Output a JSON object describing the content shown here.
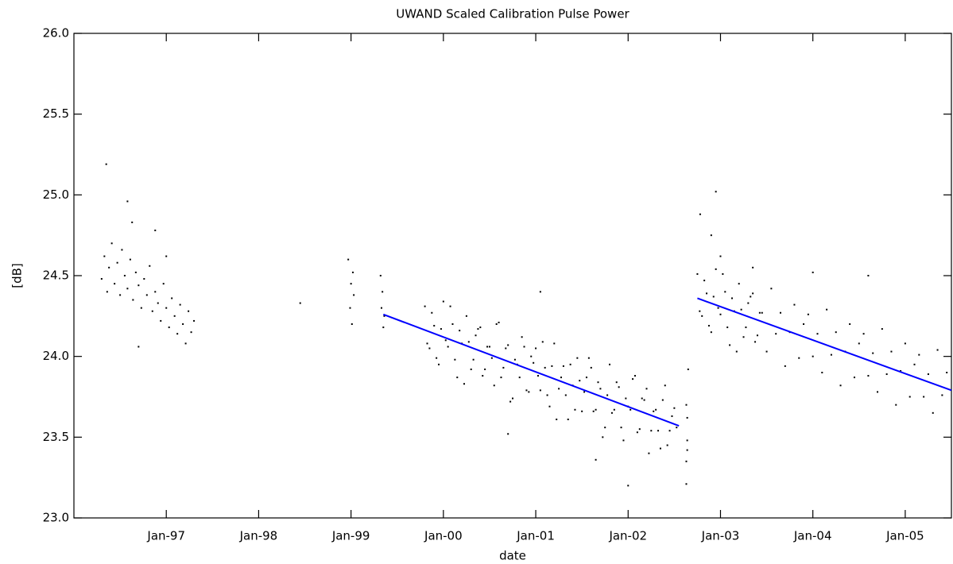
{
  "chart_data": {
    "type": "scatter",
    "title": "UWAND Scaled Calibration Pulse Power",
    "xlabel": "date",
    "ylabel": "[dB]",
    "xlim": [
      1996.0,
      2005.5
    ],
    "ylim": [
      23.0,
      26.0
    ],
    "xticks": [
      {
        "value": 1997,
        "label": "Jan-97"
      },
      {
        "value": 1998,
        "label": "Jan-98"
      },
      {
        "value": 1999,
        "label": "Jan-99"
      },
      {
        "value": 2000,
        "label": "Jan-00"
      },
      {
        "value": 2001,
        "label": "Jan-01"
      },
      {
        "value": 2002,
        "label": "Jan-02"
      },
      {
        "value": 2003,
        "label": "Jan-03"
      },
      {
        "value": 2004,
        "label": "Jan-04"
      },
      {
        "value": 2005,
        "label": "Jan-05"
      }
    ],
    "yticks": [
      {
        "value": 23,
        "label": "23.0"
      },
      23.5,
      {
        "value": 24,
        "label": "24.0"
      },
      24.5,
      {
        "value": 25,
        "label": "25.0"
      },
      25.5,
      {
        "value": 26,
        "label": "26.0"
      }
    ],
    "grid": false,
    "series": [
      {
        "type": "scatter",
        "color": "#000000",
        "x": [
          1996.3,
          1996.33,
          1996.36,
          1996.38,
          1996.41,
          1996.44,
          1996.47,
          1996.5,
          1996.52,
          1996.55,
          1996.58,
          1996.61,
          1996.64,
          1996.67,
          1996.7,
          1996.73,
          1996.76,
          1996.79,
          1996.82,
          1996.85,
          1996.88,
          1996.91,
          1996.94,
          1996.97,
          1997.0,
          1997.03,
          1997.06,
          1997.09,
          1997.12,
          1997.15,
          1997.18,
          1997.21,
          1997.24,
          1997.27,
          1997.3,
          1996.7,
          1997.0,
          1996.35,
          1996.58,
          1996.63,
          1996.88,
          1998.45,
          1998.97,
          1999.0,
          1998.99,
          1999.02,
          1999.01,
          1999.03,
          1999.32,
          1999.33,
          1999.35,
          1999.34,
          1999.36,
          1999.8,
          1999.85,
          1999.9,
          1999.95,
          2000.0,
          2000.05,
          2000.1,
          2000.15,
          2000.2,
          2000.25,
          2000.3,
          2000.35,
          2000.4,
          2000.45,
          2000.5,
          2000.55,
          2000.6,
          2000.65,
          2000.7,
          2000.75,
          2000.8,
          2000.85,
          2000.9,
          2000.95,
          2001.0,
          2001.05,
          2001.1,
          2001.15,
          2001.2,
          2001.25,
          2001.3,
          2001.35,
          2001.4,
          2001.45,
          2001.5,
          2001.55,
          2001.6,
          2001.65,
          2001.7,
          2001.75,
          2001.8,
          2001.85,
          2001.9,
          2001.95,
          2002.0,
          2002.05,
          2002.1,
          2002.15,
          2002.2,
          2002.25,
          2002.3,
          2002.35,
          2002.4,
          2002.45,
          2002.5,
          1999.825,
          1999.875,
          1999.925,
          1999.975,
          2000.025,
          2000.075,
          2000.125,
          2000.175,
          2000.225,
          2000.275,
          2000.325,
          2000.375,
          2000.425,
          2000.475,
          2000.525,
          2000.575,
          2000.625,
          2000.675,
          2000.725,
          2000.775,
          2000.825,
          2000.875,
          2000.925,
          2000.975,
          2001.025,
          2001.075,
          2001.125,
          2001.175,
          2001.225,
          2001.275,
          2001.325,
          2001.375,
          2001.425,
          2001.475,
          2001.525,
          2001.575,
          2001.625,
          2001.675,
          2001.725,
          2001.775,
          2001.825,
          2001.875,
          2001.925,
          2001.975,
          2002.025,
          2002.075,
          2002.125,
          2002.175,
          2002.225,
          2002.275,
          2002.325,
          2002.375,
          2002.425,
          2002.475,
          2002.525,
          2001.05,
          2001.65,
          2002.0,
          2000.7,
          2002.63,
          2002.63,
          2002.64,
          2002.64,
          2002.63,
          2002.64,
          2002.65,
          2002.75,
          2002.8,
          2002.85,
          2002.9,
          2002.95,
          2003.0,
          2003.05,
          2003.1,
          2003.15,
          2003.2,
          2003.25,
          2003.3,
          2003.35,
          2003.4,
          2003.45,
          2003.5,
          2003.55,
          2003.6,
          2003.65,
          2003.7,
          2003.75,
          2003.8,
          2003.85,
          2003.9,
          2003.95,
          2004.0,
          2004.05,
          2004.1,
          2004.15,
          2004.2,
          2004.25,
          2004.3,
          2004.35,
          2004.4,
          2004.45,
          2004.5,
          2004.55,
          2004.6,
          2004.65,
          2004.7,
          2004.75,
          2004.8,
          2004.85,
          2004.9,
          2004.95,
          2005.0,
          2005.05,
          2005.1,
          2005.15,
          2005.2,
          2005.25,
          2005.3,
          2005.35,
          2005.4,
          2005.45,
          2002.775,
          2002.825,
          2002.875,
          2002.925,
          2002.975,
          2003.025,
          2003.075,
          2003.125,
          2003.175,
          2003.225,
          2003.275,
          2003.325,
          2003.375,
          2003.425,
          2002.78,
          2002.95,
          2002.9,
          2003.35,
          2004.0,
          2004.6,
          2003.0
        ],
        "values": [
          24.48,
          24.62,
          24.4,
          24.55,
          24.7,
          24.45,
          24.58,
          24.38,
          24.66,
          24.5,
          24.42,
          24.6,
          24.35,
          24.52,
          24.44,
          24.3,
          24.48,
          24.38,
          24.56,
          24.28,
          24.4,
          24.33,
          24.22,
          24.45,
          24.3,
          24.18,
          24.36,
          24.25,
          24.14,
          24.32,
          24.2,
          24.08,
          24.28,
          24.15,
          24.22,
          24.06,
          24.62,
          25.19,
          24.96,
          24.83,
          24.78,
          24.33,
          24.6,
          24.45,
          24.3,
          24.52,
          24.2,
          24.38,
          24.5,
          24.3,
          24.18,
          24.4,
          24.25,
          24.31,
          24.05,
          24.19,
          23.95,
          24.34,
          24.06,
          24.2,
          23.87,
          24.08,
          24.25,
          23.92,
          24.13,
          24.18,
          23.92,
          24.06,
          23.82,
          24.21,
          23.93,
          24.07,
          23.74,
          23.95,
          24.12,
          23.79,
          24.0,
          24.05,
          23.79,
          23.93,
          23.69,
          24.08,
          23.8,
          23.94,
          23.61,
          23.82,
          23.99,
          23.66,
          23.87,
          23.93,
          23.67,
          23.8,
          23.56,
          23.95,
          23.67,
          23.81,
          23.48,
          23.69,
          23.86,
          23.53,
          23.74,
          23.8,
          23.54,
          23.67,
          23.43,
          23.82,
          23.54,
          23.68,
          24.08,
          24.27,
          23.99,
          24.17,
          24.1,
          24.31,
          23.98,
          24.16,
          23.83,
          24.09,
          23.98,
          24.17,
          23.88,
          24.06,
          23.99,
          24.2,
          23.87,
          24.05,
          23.72,
          23.98,
          23.87,
          24.06,
          23.78,
          23.96,
          23.88,
          24.09,
          23.76,
          23.94,
          23.61,
          23.87,
          23.76,
          23.95,
          23.67,
          23.85,
          23.78,
          23.99,
          23.66,
          23.84,
          23.5,
          23.76,
          23.65,
          23.84,
          23.56,
          23.74,
          23.67,
          23.88,
          23.55,
          23.73,
          23.4,
          23.66,
          23.54,
          23.73,
          23.45,
          23.63,
          23.56,
          24.4,
          23.36,
          23.2,
          23.52,
          23.21,
          23.35,
          23.48,
          23.62,
          23.7,
          23.42,
          23.92,
          24.51,
          24.25,
          24.39,
          24.15,
          24.54,
          24.26,
          24.4,
          24.07,
          24.28,
          24.45,
          24.12,
          24.33,
          24.39,
          24.13,
          24.27,
          24.03,
          24.42,
          24.14,
          24.27,
          23.94,
          24.15,
          24.32,
          23.99,
          24.2,
          24.26,
          24.0,
          24.14,
          23.9,
          24.29,
          24.01,
          24.15,
          23.82,
          24.03,
          24.2,
          23.87,
          24.08,
          24.14,
          23.88,
          24.02,
          23.78,
          24.17,
          23.89,
          24.03,
          23.7,
          23.91,
          24.08,
          23.75,
          23.95,
          24.01,
          23.75,
          23.89,
          23.65,
          24.04,
          23.76,
          23.9,
          24.28,
          24.47,
          24.19,
          24.37,
          24.3,
          24.51,
          24.18,
          24.36,
          24.03,
          24.29,
          24.18,
          24.37,
          24.09,
          24.27,
          24.88,
          25.02,
          24.75,
          24.55,
          24.52,
          24.5,
          24.62
        ]
      },
      {
        "type": "line",
        "color": "#0000ff",
        "x": [
          1999.35,
          2002.55
        ],
        "values": [
          24.26,
          23.57
        ]
      },
      {
        "type": "line",
        "color": "#0000ff",
        "x": [
          2002.75,
          2005.5
        ],
        "values": [
          24.36,
          23.79
        ]
      }
    ]
  }
}
